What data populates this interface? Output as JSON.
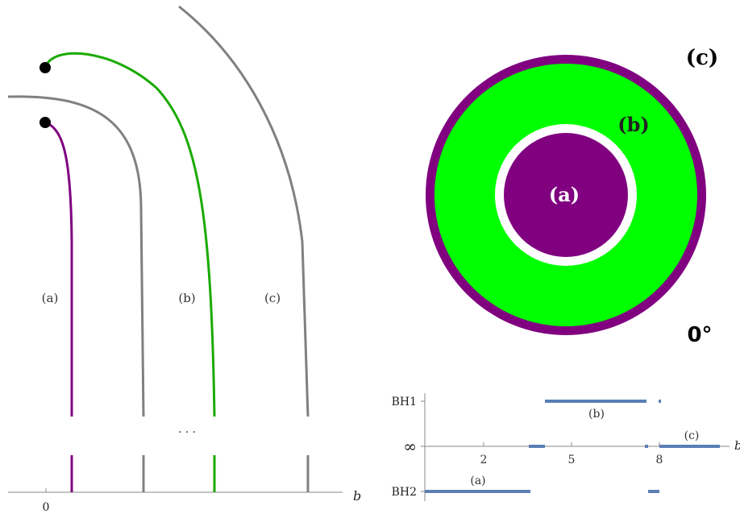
{
  "left_panel": {
    "curve_labels": [
      "(a)",
      "(b)",
      "(c)"
    ],
    "ellipsis": "· · ·",
    "x_axis_label": "b",
    "x_tick_label": "0",
    "colors": {
      "a": "#800080",
      "b": "#1aaa00",
      "gray": "#808080",
      "point": "#000000"
    }
  },
  "disk_panel": {
    "panel_label": "(c)",
    "ring_label_b": "(b)",
    "center_label_a": "(a)",
    "angle_label": "0°",
    "colors": {
      "purple": "#800080",
      "green": "#00ff00",
      "white": "#ffffff"
    }
  },
  "strip_panel": {
    "y_labels": {
      "top": "BH1",
      "middle": "∞",
      "bottom": "BH2"
    },
    "x_ticks": [
      "2",
      "5",
      "8"
    ],
    "x_axis_label": "b",
    "segment_labels": {
      "a": "(a)",
      "b": "(b)",
      "c": "(c)"
    },
    "segment_color": "#5b7fb5"
  }
}
